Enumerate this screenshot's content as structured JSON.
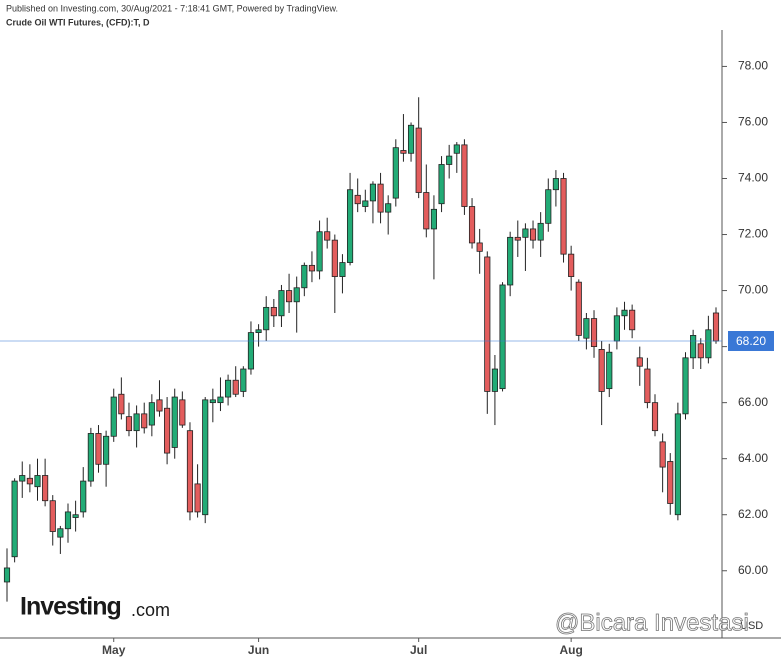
{
  "chart_data": {
    "type": "candlestick",
    "publisher": "Published on Investing.com, 30/Aug/2021 - 7:18:41 GMT, Powered by TradingView.",
    "title": "Crude Oil WTI Futures, (CFD):T, D",
    "logo": "Investing",
    "logo_suffix": ".com",
    "watermark": "@Bicara Investasi",
    "currency": "USD",
    "up_color": "#22ab76",
    "down_color": "#e35d5d",
    "last_price": {
      "value": 68.2,
      "label": "68.20"
    },
    "last_price_color": "#3a78d6",
    "ylim": [
      57.6,
      79.3
    ],
    "yticks": [
      {
        "value": 60,
        "label": "60.00"
      },
      {
        "value": 62,
        "label": "62.00"
      },
      {
        "value": 64,
        "label": "64.00"
      },
      {
        "value": 66,
        "label": "66.00"
      },
      {
        "value": 68,
        "label": "68.00"
      },
      {
        "value": 70,
        "label": "70.00"
      },
      {
        "value": 72,
        "label": "72.00"
      },
      {
        "value": 74,
        "label": "74.00"
      },
      {
        "value": 76,
        "label": "76.00"
      },
      {
        "value": 78,
        "label": "78.00"
      }
    ],
    "categories": [
      null,
      null,
      null,
      null,
      null,
      null,
      null,
      null,
      null,
      null,
      null,
      null,
      null,
      null,
      "May",
      null,
      null,
      null,
      null,
      null,
      null,
      null,
      null,
      null,
      null,
      null,
      null,
      null,
      null,
      null,
      null,
      null,
      null,
      "Jun",
      null,
      null,
      null,
      null,
      null,
      null,
      null,
      null,
      null,
      null,
      null,
      null,
      null,
      null,
      null,
      null,
      null,
      null,
      null,
      null,
      "Jul",
      null,
      null,
      null,
      null,
      null,
      null,
      null,
      null,
      null,
      null,
      null,
      null,
      null,
      null,
      null,
      null,
      null,
      null,
      null,
      "Aug",
      null,
      null,
      null,
      null,
      null,
      null,
      null,
      null,
      null,
      null,
      null,
      null,
      null,
      null,
      null,
      null,
      null,
      null,
      null
    ],
    "open": [
      59.6,
      60.5,
      63.2,
      63.3,
      63.0,
      63.4,
      62.5,
      61.2,
      61.5,
      61.9,
      62.1,
      63.2,
      64.9,
      63.8,
      64.8,
      66.3,
      65.5,
      65.0,
      65.6,
      65.2,
      66.1,
      65.8,
      64.4,
      66.1,
      65.0,
      63.1,
      62.0,
      66.0,
      66.0,
      66.2,
      66.8,
      66.4,
      67.2,
      68.5,
      68.6,
      69.4,
      69.1,
      70.0,
      69.6,
      70.1,
      70.9,
      70.7,
      72.1,
      71.8,
      70.5,
      71.0,
      73.4,
      73.0,
      73.2,
      73.8,
      72.8,
      73.3,
      75.0,
      74.9,
      75.8,
      73.5,
      72.2,
      73.1,
      74.5,
      74.9,
      75.2,
      73.0,
      71.7,
      71.2,
      66.4,
      66.5,
      70.2,
      71.9,
      71.9,
      72.2,
      71.8,
      72.4,
      73.6,
      74.0,
      71.3,
      70.3,
      68.3,
      69.0,
      67.9,
      66.5,
      68.2,
      69.1,
      69.3,
      67.6,
      67.2,
      66.0,
      64.6,
      63.9,
      62.0,
      65.6,
      67.6,
      68.1,
      67.6,
      69.2
    ],
    "high": [
      60.8,
      63.3,
      63.9,
      63.8,
      64.0,
      64.0,
      62.7,
      61.6,
      62.4,
      62.5,
      63.7,
      65.1,
      65.2,
      65.0,
      66.5,
      66.9,
      66.0,
      65.9,
      66.0,
      66.3,
      66.8,
      66.2,
      66.5,
      66.4,
      65.3,
      63.8,
      66.2,
      66.5,
      66.9,
      67.0,
      67.3,
      67.3,
      68.9,
      68.8,
      69.8,
      69.7,
      70.2,
      70.6,
      70.5,
      71.0,
      71.4,
      72.5,
      72.6,
      72.0,
      71.3,
      74.2,
      74.0,
      73.6,
      73.9,
      74.2,
      73.4,
      75.4,
      76.3,
      76.0,
      76.9,
      74.5,
      73.4,
      74.8,
      75.2,
      75.3,
      75.4,
      73.3,
      72.2,
      71.4,
      67.7,
      70.3,
      72.1,
      72.5,
      72.4,
      72.5,
      72.8,
      74.0,
      74.3,
      74.2,
      71.6,
      70.4,
      69.2,
      69.3,
      68.2,
      68.1,
      69.4,
      69.6,
      69.5,
      68.0,
      67.6,
      66.3,
      64.9,
      64.2,
      66.0,
      67.8,
      68.6,
      68.3,
      69.1,
      69.4
    ],
    "low": [
      58.9,
      60.3,
      62.6,
      62.8,
      62.5,
      62.3,
      60.9,
      60.6,
      61.0,
      61.4,
      61.9,
      63.0,
      63.5,
      63.0,
      64.6,
      65.4,
      64.8,
      64.4,
      64.9,
      64.8,
      65.5,
      63.8,
      64.0,
      65.1,
      61.8,
      61.9,
      61.7,
      65.3,
      65.7,
      65.9,
      66.2,
      66.2,
      67.0,
      68.0,
      68.2,
      68.7,
      68.7,
      69.2,
      68.5,
      69.8,
      70.3,
      70.4,
      71.5,
      69.2,
      69.9,
      70.9,
      72.8,
      72.8,
      72.4,
      72.4,
      72.0,
      73.0,
      74.6,
      74.6,
      73.3,
      71.9,
      70.4,
      72.8,
      74.0,
      74.2,
      72.7,
      71.5,
      70.6,
      65.6,
      65.2,
      66.4,
      69.8,
      71.2,
      70.7,
      71.5,
      71.2,
      72.1,
      73.0,
      71.0,
      70.0,
      68.2,
      67.9,
      67.6,
      65.2,
      66.2,
      67.9,
      68.6,
      68.3,
      66.6,
      65.8,
      64.8,
      62.8,
      62.0,
      61.8,
      65.4,
      67.2,
      67.2,
      67.4,
      68.1
    ],
    "close": [
      60.1,
      63.2,
      63.4,
      63.1,
      63.4,
      62.5,
      61.4,
      61.5,
      62.1,
      62.0,
      63.2,
      64.9,
      63.8,
      64.8,
      66.2,
      65.6,
      65.0,
      65.6,
      65.1,
      66.0,
      65.7,
      64.2,
      66.2,
      65.2,
      62.1,
      62.1,
      66.1,
      66.1,
      66.2,
      66.8,
      66.3,
      67.2,
      68.5,
      68.6,
      69.4,
      69.1,
      70.0,
      69.6,
      70.1,
      70.9,
      70.7,
      72.1,
      71.8,
      70.5,
      71.0,
      73.6,
      73.1,
      73.2,
      73.8,
      72.8,
      73.1,
      75.1,
      74.9,
      75.9,
      73.5,
      72.2,
      72.9,
      74.5,
      74.8,
      75.2,
      73.0,
      71.7,
      71.4,
      66.4,
      67.2,
      70.2,
      71.9,
      71.8,
      72.2,
      71.8,
      72.4,
      73.6,
      74.0,
      71.3,
      70.5,
      68.4,
      69.0,
      68.0,
      66.4,
      67.8,
      69.1,
      69.3,
      68.6,
      67.3,
      66.0,
      65.0,
      63.7,
      62.4,
      65.6,
      67.6,
      68.4,
      67.6,
      68.6,
      68.2
    ]
  }
}
